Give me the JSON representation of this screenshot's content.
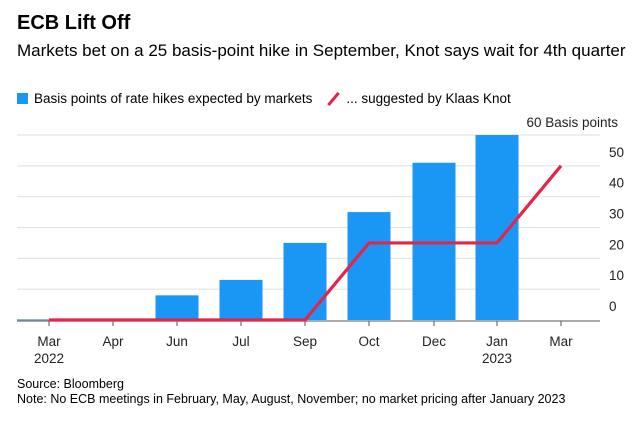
{
  "chart_data": {
    "type": "bar+line",
    "title": "ECB Lift Off",
    "subtitle": "Markets bet on a 25 basis-point hike in September, Knot says wait for 4th quarter",
    "categories": [
      "Mar\n2022",
      "Apr",
      "Jun",
      "Jul",
      "Sep",
      "Oct",
      "Dec",
      "Jan\n2023",
      "Mar"
    ],
    "x_labels": [
      [
        "Mar",
        "2022"
      ],
      [
        "Apr",
        ""
      ],
      [
        "Jun",
        ""
      ],
      [
        "Jul",
        ""
      ],
      [
        "Sep",
        ""
      ],
      [
        "Oct",
        ""
      ],
      [
        "Dec",
        ""
      ],
      [
        "Jan",
        "2023"
      ],
      [
        "Mar",
        ""
      ]
    ],
    "series": [
      {
        "name": "Basis points of rate hikes expected by markets",
        "type": "bar",
        "color": "#1a96f5",
        "values": [
          0,
          0,
          8,
          13,
          25,
          35,
          51,
          60,
          null
        ]
      },
      {
        "name": "... suggested by Klaas Knot",
        "type": "line",
        "color": "#e2254a",
        "values": [
          0,
          0,
          0,
          0,
          0,
          25,
          25,
          25,
          50
        ]
      }
    ],
    "ylabel": "Basis points",
    "y_unit_label": "60 Basis points",
    "yticks": [
      0,
      10,
      20,
      30,
      40,
      50,
      60
    ],
    "ylim": [
      0,
      60
    ],
    "grid": true,
    "yaxis_position": "right",
    "legend_position": "top"
  },
  "footer": {
    "source": "Source: Bloomberg",
    "note": "Note: No ECB meetings in February, May, August, November; no market pricing after January 2023"
  }
}
